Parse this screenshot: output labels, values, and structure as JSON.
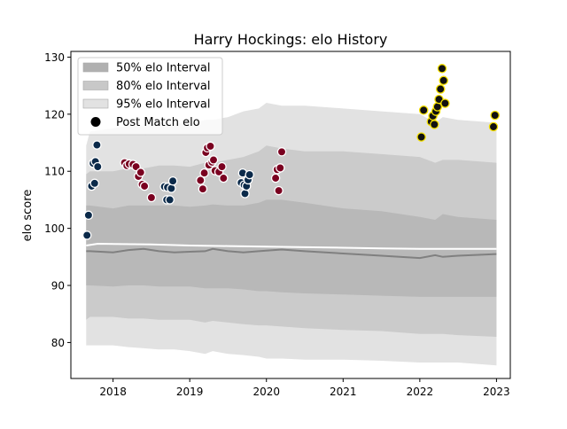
{
  "chart_data": {
    "type": "scatter",
    "title": "Harry Hockings: elo History",
    "xlabel": "",
    "ylabel": "elo score",
    "xlim": [
      2017.45,
      2023.18
    ],
    "ylim": [
      73.7,
      131.0
    ],
    "x_ticks": [
      2018,
      2019,
      2020,
      2021,
      2022,
      2023
    ],
    "x_tick_labels": [
      "2018",
      "2019",
      "2020",
      "2021",
      "2022",
      "2023"
    ],
    "y_ticks": [
      80,
      90,
      100,
      110,
      120,
      130
    ],
    "y_tick_labels": [
      "80",
      "90",
      "100",
      "110",
      "120",
      "130"
    ],
    "grid": false,
    "legend_position": "top-left",
    "legend": [
      {
        "label": "50% elo Interval",
        "kind": "band",
        "color": "#b0b0b0"
      },
      {
        "label": "80% elo Interval",
        "kind": "band",
        "color": "#c8c8c8"
      },
      {
        "label": "95% elo Interval",
        "kind": "band",
        "color": "#e2e2e2"
      },
      {
        "label": "Post Match elo",
        "kind": "marker",
        "color": "#000000"
      }
    ],
    "bands": {
      "x": [
        2017.65,
        2017.7,
        2018.0,
        2018.2,
        2018.4,
        2018.6,
        2018.8,
        2019.0,
        2019.2,
        2019.3,
        2019.5,
        2019.7,
        2019.9,
        2020.0,
        2020.2,
        2020.5,
        2021.0,
        2021.5,
        2022.0,
        2022.2,
        2022.3,
        2022.5,
        2023.0
      ],
      "p95_upper": [
        114.5,
        117.0,
        117.5,
        118.0,
        118.0,
        118.5,
        118.5,
        118.3,
        119.0,
        119.0,
        119.5,
        120.5,
        121.0,
        122.0,
        121.5,
        121.5,
        121.0,
        120.5,
        120.0,
        118.5,
        119.5,
        119.0,
        118.5
      ],
      "p80_upper": [
        109.5,
        110.0,
        110.0,
        110.5,
        110.5,
        111.0,
        111.0,
        110.8,
        111.5,
        111.5,
        112.0,
        112.5,
        113.5,
        114.5,
        114.0,
        113.5,
        113.5,
        113.0,
        112.5,
        111.5,
        112.0,
        112.0,
        111.5
      ],
      "p50_upper": [
        104.0,
        104.0,
        103.5,
        104.0,
        104.0,
        104.0,
        104.0,
        103.8,
        104.0,
        104.2,
        104.0,
        104.0,
        104.5,
        105.0,
        105.0,
        104.5,
        103.5,
        103.0,
        102.0,
        101.5,
        102.5,
        102.0,
        101.5
      ],
      "median": [
        96.0,
        96.0,
        95.8,
        96.2,
        96.4,
        96.0,
        95.8,
        95.9,
        96.0,
        96.4,
        96.0,
        95.8,
        96.0,
        96.1,
        96.3,
        96.0,
        95.6,
        95.2,
        94.8,
        95.3,
        95.0,
        95.2,
        95.5
      ],
      "p50_lower": [
        90.0,
        90.0,
        89.8,
        90.0,
        90.0,
        89.8,
        89.8,
        89.8,
        89.5,
        89.5,
        89.5,
        89.3,
        89.0,
        89.0,
        88.8,
        88.6,
        88.4,
        88.2,
        88.0,
        88.0,
        88.0,
        88.0,
        88.0
      ],
      "p80_lower": [
        84.0,
        84.5,
        84.5,
        84.2,
        84.2,
        84.0,
        84.0,
        84.0,
        83.5,
        83.8,
        83.5,
        83.2,
        83.0,
        83.0,
        82.8,
        82.5,
        82.2,
        82.0,
        81.5,
        81.5,
        81.5,
        81.3,
        81.0
      ],
      "p95_lower": [
        79.5,
        79.5,
        79.5,
        79.2,
        79.0,
        78.8,
        78.8,
        78.5,
        78.0,
        78.5,
        78.0,
        77.8,
        77.5,
        77.2,
        77.2,
        77.0,
        77.0,
        76.8,
        76.5,
        76.5,
        76.5,
        76.5,
        76.0
      ]
    },
    "white_line": {
      "x": [
        2017.65,
        2017.8,
        2018.5,
        2019.0,
        2019.5,
        2020.0,
        2020.5,
        2021.0,
        2021.5,
        2022.0,
        2022.5,
        2023.0
      ],
      "y": [
        97.0,
        97.3,
        97.2,
        97.0,
        96.9,
        96.8,
        96.7,
        96.6,
        96.5,
        96.4,
        96.4,
        96.4
      ]
    },
    "series": [
      {
        "color": "#0b2a4a",
        "edge": "#ffffff",
        "points": [
          [
            2017.66,
            98.8
          ],
          [
            2017.68,
            102.3
          ],
          [
            2017.72,
            107.4
          ],
          [
            2017.74,
            111.4
          ],
          [
            2017.76,
            107.9
          ],
          [
            2017.77,
            111.7
          ],
          [
            2017.79,
            114.6
          ],
          [
            2017.8,
            110.8
          ],
          [
            2018.67,
            107.3
          ],
          [
            2018.7,
            105.0
          ],
          [
            2018.71,
            107.2
          ],
          [
            2018.74,
            105.0
          ],
          [
            2018.76,
            107.0
          ],
          [
            2018.78,
            108.3
          ],
          [
            2019.67,
            108.0
          ],
          [
            2019.69,
            109.7
          ],
          [
            2019.71,
            107.6
          ],
          [
            2019.72,
            106.1
          ],
          [
            2019.74,
            107.4
          ],
          [
            2019.76,
            108.5
          ],
          [
            2019.78,
            109.4
          ]
        ]
      },
      {
        "color": "#7a0020",
        "edge": "#ffffff",
        "points": [
          [
            2018.15,
            111.5
          ],
          [
            2018.18,
            111.0
          ],
          [
            2018.21,
            111.3
          ],
          [
            2018.26,
            111.2
          ],
          [
            2018.3,
            110.8
          ],
          [
            2018.33,
            109.1
          ],
          [
            2018.36,
            109.8
          ],
          [
            2018.38,
            107.7
          ],
          [
            2018.41,
            107.4
          ],
          [
            2018.5,
            105.4
          ],
          [
            2019.14,
            108.4
          ],
          [
            2019.17,
            106.9
          ],
          [
            2019.19,
            109.7
          ],
          [
            2019.21,
            113.3
          ],
          [
            2019.23,
            114.1
          ],
          [
            2019.25,
            111.1
          ],
          [
            2019.27,
            114.4
          ],
          [
            2019.29,
            111.6
          ],
          [
            2019.31,
            112.0
          ],
          [
            2019.33,
            110.1
          ],
          [
            2019.38,
            109.9
          ],
          [
            2019.42,
            110.8
          ],
          [
            2019.44,
            108.8
          ],
          [
            2020.12,
            108.8
          ],
          [
            2020.14,
            110.3
          ],
          [
            2020.16,
            106.6
          ],
          [
            2020.18,
            110.6
          ],
          [
            2020.2,
            113.4
          ]
        ]
      },
      {
        "color": "#111111",
        "edge": "#f5e000",
        "points": [
          [
            2022.02,
            116.0
          ],
          [
            2022.05,
            120.7
          ],
          [
            2022.15,
            118.7
          ],
          [
            2022.17,
            119.7
          ],
          [
            2022.19,
            118.2
          ],
          [
            2022.21,
            120.5
          ],
          [
            2022.23,
            121.3
          ],
          [
            2022.25,
            122.6
          ],
          [
            2022.27,
            124.4
          ],
          [
            2022.29,
            128.0
          ],
          [
            2022.31,
            125.9
          ],
          [
            2022.33,
            121.9
          ],
          [
            2022.96,
            117.8
          ],
          [
            2022.98,
            119.8
          ]
        ]
      }
    ]
  }
}
